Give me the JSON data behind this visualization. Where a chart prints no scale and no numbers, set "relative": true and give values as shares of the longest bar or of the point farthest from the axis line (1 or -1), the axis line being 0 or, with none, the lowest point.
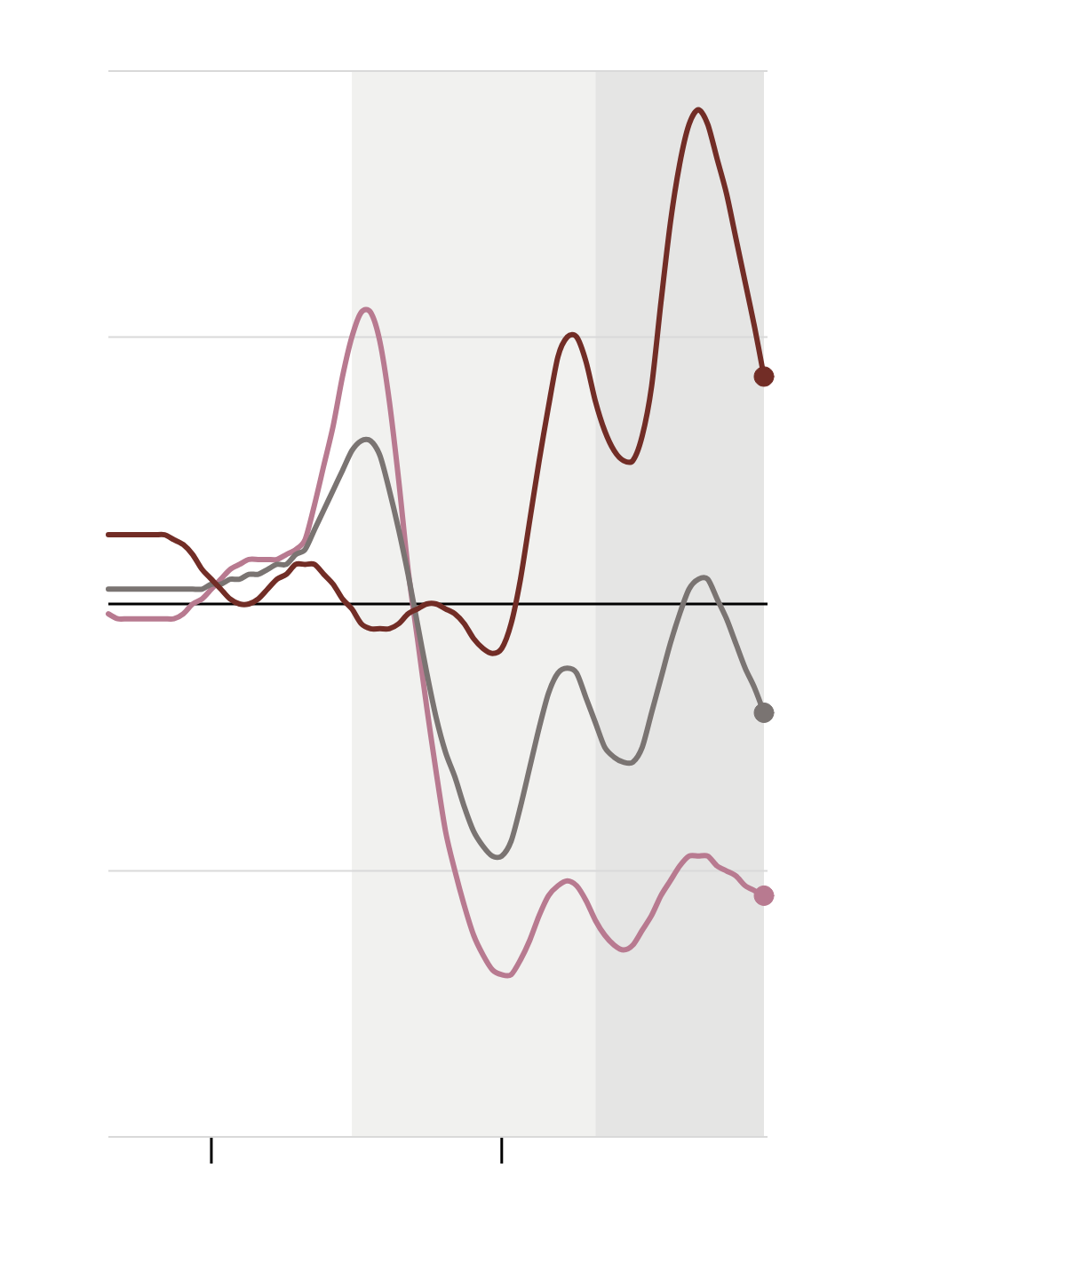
{
  "chart_data": {
    "type": "line",
    "relative": true,
    "categories": [
      null,
      null,
      null,
      null,
      null,
      null,
      null,
      null,
      null,
      null,
      null,
      null,
      null,
      null,
      null,
      null,
      null,
      null,
      null,
      null,
      null,
      null,
      null,
      null,
      null,
      null,
      null,
      null,
      null,
      null,
      null,
      null,
      null,
      null,
      null,
      null,
      null,
      null,
      null,
      null,
      null,
      null,
      null,
      null,
      null,
      null,
      null,
      null,
      null,
      null,
      null,
      null,
      null,
      null,
      null,
      null,
      null,
      null,
      null,
      null,
      null,
      null,
      null,
      null,
      null,
      null,
      null,
      null,
      null,
      null,
      null
    ],
    "series": [
      {
        "color": "#b87a90",
        "values": [
          -0.02,
          -0.03,
          -0.03,
          -0.03,
          -0.03,
          -0.03,
          -0.03,
          -0.03,
          -0.02,
          0,
          0.01,
          0.03,
          0.05,
          0.07,
          0.08,
          0.09,
          0.09,
          0.09,
          0.09,
          0.1,
          0.11,
          0.13,
          0.2,
          0.28,
          0.36,
          0.46,
          0.54,
          0.59,
          0.59,
          0.53,
          0.41,
          0.25,
          0.07,
          -0.07,
          -0.21,
          -0.34,
          -0.46,
          -0.54,
          -0.61,
          -0.67,
          -0.71,
          -0.74,
          -0.75,
          -0.75,
          -0.72,
          -0.68,
          -0.63,
          -0.59,
          -0.57,
          -0.56,
          -0.57,
          -0.6,
          -0.64,
          -0.67,
          -0.69,
          -0.7,
          -0.69,
          -0.66,
          -0.63,
          -0.59,
          -0.56,
          -0.53,
          -0.51,
          -0.51,
          -0.51,
          -0.53,
          -0.54,
          -0.55,
          -0.57,
          -0.58,
          -0.59
        ]
      },
      {
        "color": "#7a7472",
        "values": [
          0.03,
          0.03,
          0.03,
          0.03,
          0.03,
          0.03,
          0.03,
          0.03,
          0.03,
          0.03,
          0.03,
          0.04,
          0.04,
          0.05,
          0.05,
          0.06,
          0.06,
          0.07,
          0.08,
          0.08,
          0.1,
          0.11,
          0.15,
          0.19,
          0.23,
          0.27,
          0.31,
          0.33,
          0.33,
          0.3,
          0.23,
          0.15,
          0.06,
          -0.04,
          -0.14,
          -0.23,
          -0.3,
          -0.35,
          -0.41,
          -0.46,
          -0.49,
          -0.51,
          -0.51,
          -0.48,
          -0.41,
          -0.33,
          -0.25,
          -0.18,
          -0.14,
          -0.13,
          -0.14,
          -0.19,
          -0.24,
          -0.29,
          -0.31,
          -0.32,
          -0.32,
          -0.29,
          -0.22,
          -0.15,
          -0.08,
          -0.02,
          0.03,
          0.05,
          0.05,
          0.01,
          -0.03,
          -0.08,
          -0.13,
          -0.17,
          -0.22
        ]
      },
      {
        "color": "#722d26",
        "values": [
          0.14,
          0.14,
          0.14,
          0.14,
          0.14,
          0.14,
          0.14,
          0.13,
          0.12,
          0.1,
          0.07,
          0.05,
          0.03,
          0.01,
          0,
          0,
          0.01,
          0.03,
          0.05,
          0.06,
          0.08,
          0.08,
          0.08,
          0.06,
          0.04,
          0.01,
          -0.01,
          -0.04,
          -0.05,
          -0.05,
          -0.05,
          -0.04,
          -0.02,
          -0.01,
          0,
          0,
          -0.01,
          -0.02,
          -0.04,
          -0.07,
          -0.09,
          -0.1,
          -0.09,
          -0.04,
          0.05,
          0.17,
          0.29,
          0.4,
          0.5,
          0.54,
          0.54,
          0.49,
          0.41,
          0.35,
          0.31,
          0.29,
          0.29,
          0.34,
          0.44,
          0.61,
          0.77,
          0.89,
          0.97,
          1,
          0.97,
          0.9,
          0.83,
          0.74,
          0.65,
          0.56,
          0.46
        ]
      }
    ],
    "ref_lines": [
      {
        "axis": "y",
        "value": 0.54,
        "color": "#d9d9d9",
        "line_style": "solid"
      },
      {
        "axis": "y",
        "value": -0.54,
        "color": "#d9d9d9",
        "line_style": "solid"
      }
    ],
    "line_style": "solid"
  }
}
